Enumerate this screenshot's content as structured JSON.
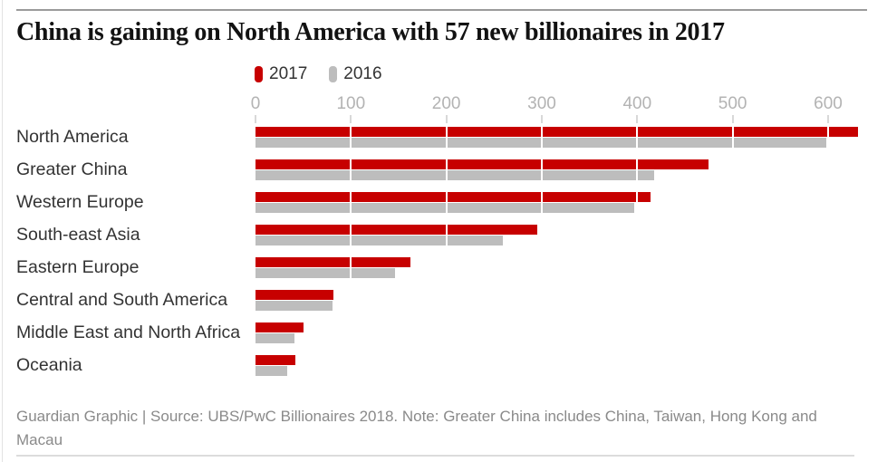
{
  "page": {
    "title": "China is gaining on North America with 57 new billionaires in 2017",
    "footer": "Guardian Graphic | Source: UBS/PwC Billionaires 2018. Note: Greater China includes China, Taiwan, Hong Kong and Macau"
  },
  "legend": {
    "items": [
      {
        "label": "2017",
        "color": "#c70000"
      },
      {
        "label": "2016",
        "color": "#bdbdbd"
      }
    ]
  },
  "chart_data": {
    "type": "bar",
    "orientation": "horizontal",
    "title": "China is gaining on North America with 57 new billionaires in 2017",
    "categories": [
      "North America",
      "Greater China",
      "Western Europe",
      "South-east Asia",
      "Eastern Europe",
      "Central and South America",
      "Middle East and North Africa",
      "Oceania"
    ],
    "series": [
      {
        "name": "2017",
        "color": "#c70000",
        "values": [
          631,
          475,
          414,
          295,
          162,
          82,
          50,
          42
        ]
      },
      {
        "name": "2016",
        "color": "#bdbdbd",
        "values": [
          598,
          418,
          397,
          259,
          146,
          81,
          41,
          33
        ]
      }
    ],
    "x_ticks": [
      0,
      100,
      200,
      300,
      400,
      500,
      600
    ],
    "xlim": [
      0,
      640
    ],
    "xlabel": "",
    "ylabel": "",
    "grid": "white vertical gridlines over bars at each 100",
    "legend_position": "top"
  },
  "colors": {
    "bar_2017": "#c70000",
    "bar_2016": "#bdbdbd",
    "axis_label": "#b3b3b3",
    "tick": "#d8d8d8",
    "category_label": "#333333",
    "title": "#121212",
    "footer": "#8a8a8a",
    "top_rule": "#9b9b9b",
    "bottom_rule": "#dcdcdc"
  }
}
